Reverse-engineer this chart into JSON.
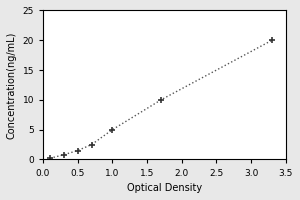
{
  "x_data": [
    0.1,
    0.3,
    0.5,
    0.7,
    1.0,
    1.7,
    3.3
  ],
  "y_data": [
    0.2,
    0.8,
    1.5,
    2.5,
    5.0,
    10.0,
    20.0
  ],
  "xlabel": "Optical Density",
  "ylabel": "Concentration(ng/mL)",
  "xlim": [
    0,
    3.5
  ],
  "ylim": [
    0,
    25
  ],
  "xticks": [
    0,
    0.5,
    1,
    1.5,
    2,
    2.5,
    3,
    3.5
  ],
  "yticks": [
    0,
    5,
    10,
    15,
    20,
    25
  ],
  "line_color": "#555555",
  "marker_color": "#333333",
  "marker_style": "+",
  "bg_color": "#e8e8e8",
  "plot_bg_color": "#ffffff",
  "label_fontsize": 7,
  "tick_fontsize": 6.5
}
